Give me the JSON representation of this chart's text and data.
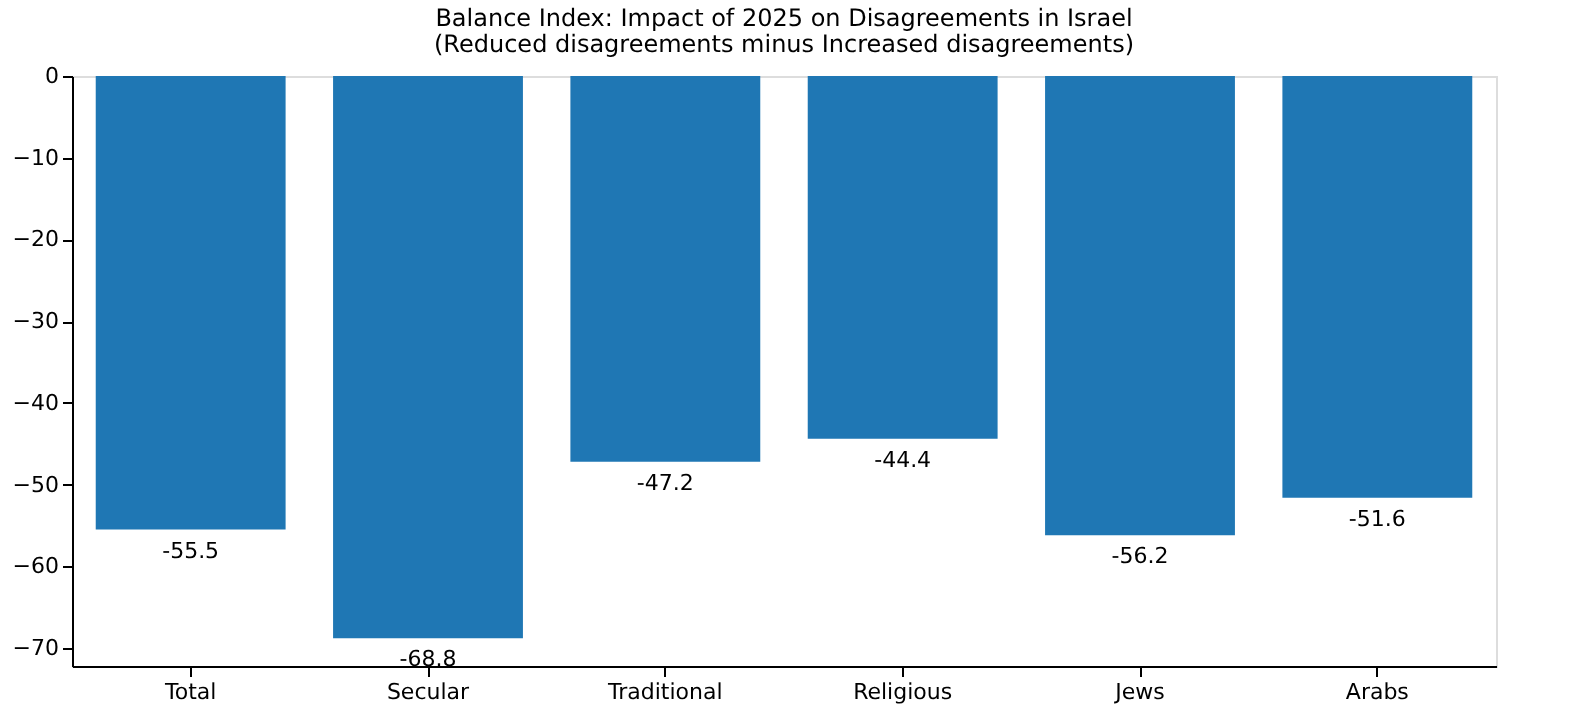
{
  "chart_data": {
    "type": "bar",
    "title": "Balance Index: Impact of 2025 on Disagreements in Israel",
    "subtitle": "(Reduced disagreements minus Increased disagreements)",
    "categories": [
      "Total",
      "Secular",
      "Traditional",
      "Religious",
      "Jews",
      "Arabs"
    ],
    "values": [
      -55.5,
      -68.8,
      -47.2,
      -44.4,
      -56.2,
      -51.6
    ],
    "color": "#1f77b4",
    "ylim": [
      -72.2,
      0
    ],
    "yticks": [
      0,
      -10,
      -20,
      -30,
      -40,
      -50,
      -60,
      -70
    ],
    "grid": false,
    "data_labels": true
  }
}
